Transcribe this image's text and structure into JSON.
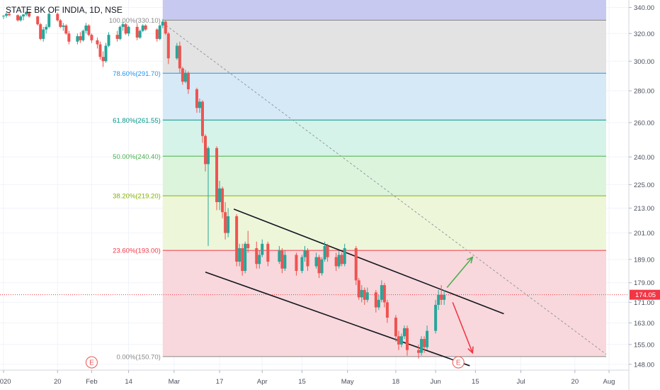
{
  "chart_data": {
    "type": "candlestick",
    "title": "STATE BK OF INDIA, 1D, NSE",
    "y_scale": "log",
    "y_range": [
      146,
      346
    ],
    "y_ticks": [
      "340.00",
      "320.00",
      "300.00",
      "280.00",
      "260.00",
      "240.00",
      "225.00",
      "213.00",
      "201.00",
      "189.00",
      "179.00",
      "171.00",
      "163.00",
      "155.00",
      "148.00"
    ],
    "x_ticks": [
      {
        "label": "2020",
        "date": "2020-01-01"
      },
      {
        "label": "20",
        "date": "2020-01-20"
      },
      {
        "label": "Feb",
        "date": "2020-02-01"
      },
      {
        "label": "14",
        "date": "2020-02-14"
      },
      {
        "label": "Mar",
        "date": "2020-03-01"
      },
      {
        "label": "17",
        "date": "2020-03-17"
      },
      {
        "label": "Apr",
        "date": "2020-04-01"
      },
      {
        "label": "15",
        "date": "2020-04-15"
      },
      {
        "label": "May",
        "date": "2020-05-01"
      },
      {
        "label": "18",
        "date": "2020-05-18"
      },
      {
        "label": "Jun",
        "date": "2020-06-01"
      },
      {
        "label": "15",
        "date": "2020-06-15"
      },
      {
        "label": "Jul",
        "date": "2020-07-01"
      },
      {
        "label": "20",
        "date": "2020-07-20"
      },
      {
        "label": "Aug",
        "date": "2020-08-01"
      }
    ],
    "last_price": "174.05",
    "last_price_value": 174.05,
    "fib_range": {
      "start_date": "2020-02-26",
      "end_date": "2020-07-31"
    },
    "fib_levels": [
      {
        "label": "100.00%(330.10)",
        "price": 330.1,
        "color": "#888888",
        "fill": "#c7c9f0"
      },
      {
        "label": "78.60%(291.70)",
        "price": 291.7,
        "color": "#2196f3",
        "fill": "#e3e3e3"
      },
      {
        "label": "61.80%(261.55)",
        "price": 261.55,
        "color": "#009688",
        "fill": "#d6e9f7"
      },
      {
        "label": "50.00%(240.40)",
        "price": 240.4,
        "color": "#4caf50",
        "fill": "#d5f3e9"
      },
      {
        "label": "38.20%(219.20)",
        "price": 219.2,
        "color": "#81b300",
        "fill": "#dcf4dc"
      },
      {
        "label": "23.60%(193.00)",
        "price": 193.0,
        "color": "#f23645",
        "fill": "#edf6d9"
      },
      {
        "label": "0.00%(150.70)",
        "price": 150.7,
        "color": "#888888",
        "fill": "#f8d8dc"
      }
    ],
    "upper_fill_price": 346,
    "channel": [
      {
        "from": [
          "2020-03-22",
          212.5
        ],
        "to": [
          "2020-06-25",
          166.5
        ]
      },
      {
        "from": [
          "2020-03-12",
          183.5
        ],
        "to": [
          "2020-06-13",
          147.5
        ]
      }
    ],
    "diagonal": {
      "from": [
        "2020-02-26",
        328
      ],
      "to": [
        "2020-07-31",
        151.5
      ]
    },
    "arrows": [
      {
        "color": "#4caf50",
        "from": [
          "2020-06-05",
          177
        ],
        "to": [
          "2020-06-14",
          190
        ]
      },
      {
        "color": "#f23645",
        "from": [
          "2020-06-07",
          171
        ],
        "to": [
          "2020-06-14",
          152
        ]
      }
    ],
    "earnings_markers": [
      {
        "label": "E",
        "date": "2020-02-01"
      },
      {
        "label": "E",
        "date": "2020-06-09"
      }
    ],
    "candles": [
      [
        "2020-01-01",
        333,
        334,
        331,
        333.5
      ],
      [
        "2020-01-02",
        333.5,
        336,
        332,
        335
      ],
      [
        "2020-01-03",
        335,
        336,
        333,
        334
      ],
      [
        "2020-01-06",
        334,
        334.5,
        329,
        330
      ],
      [
        "2020-01-07",
        330,
        334,
        329,
        333
      ],
      [
        "2020-01-08",
        333,
        335,
        330,
        334.5
      ],
      [
        "2020-01-09",
        334.5,
        337,
        333,
        336.5
      ],
      [
        "2020-01-10",
        336.5,
        337,
        332,
        333
      ],
      [
        "2020-01-13",
        333,
        333.5,
        326,
        327
      ],
      [
        "2020-01-14",
        327,
        328,
        315,
        316
      ],
      [
        "2020-01-15",
        316,
        325,
        314,
        323
      ],
      [
        "2020-01-16",
        323,
        327,
        320,
        325
      ],
      [
        "2020-01-17",
        325,
        336,
        324,
        335
      ],
      [
        "2020-01-20",
        335,
        336,
        329,
        330
      ],
      [
        "2020-01-21",
        330,
        331,
        324,
        325
      ],
      [
        "2020-01-22",
        325,
        328,
        322,
        326
      ],
      [
        "2020-01-23",
        326,
        327,
        319,
        320
      ],
      [
        "2020-01-24",
        320,
        322,
        312,
        314
      ],
      [
        "2020-01-27",
        314,
        320,
        312,
        318
      ],
      [
        "2020-01-28",
        318,
        321,
        313,
        315
      ],
      [
        "2020-01-29",
        315,
        323,
        314,
        322
      ],
      [
        "2020-01-30",
        322,
        328,
        320,
        326
      ],
      [
        "2020-01-31",
        326,
        327,
        318,
        319
      ],
      [
        "2020-02-01",
        319,
        320,
        313,
        315
      ],
      [
        "2020-02-03",
        315,
        317,
        309,
        312
      ],
      [
        "2020-02-04",
        312,
        314,
        301,
        303
      ],
      [
        "2020-02-05",
        303,
        307,
        296,
        300
      ],
      [
        "2020-02-06",
        300,
        313,
        299,
        311
      ],
      [
        "2020-02-07",
        311,
        321,
        310,
        319
      ],
      [
        "2020-02-10",
        319,
        322,
        314,
        316
      ],
      [
        "2020-02-11",
        316,
        326,
        315,
        325
      ],
      [
        "2020-02-12",
        325,
        329,
        322,
        327
      ],
      [
        "2020-02-13",
        327,
        328,
        319,
        320
      ],
      [
        "2020-02-14",
        320,
        326,
        318,
        325
      ],
      [
        "2020-02-17",
        325,
        327,
        315,
        317
      ],
      [
        "2020-02-18",
        317,
        323,
        316,
        322
      ],
      [
        "2020-02-19",
        322,
        327,
        321,
        326
      ],
      [
        "2020-02-20",
        326,
        327,
        322,
        323
      ],
      [
        "2020-02-24",
        323,
        324,
        314,
        316
      ],
      [
        "2020-02-25",
        316,
        327,
        315,
        326
      ],
      [
        "2020-02-26",
        326,
        331,
        324,
        329
      ],
      [
        "2020-02-27",
        329,
        330,
        319,
        320
      ],
      [
        "2020-02-28",
        320,
        321,
        298,
        302
      ],
      [
        "2020-03-02",
        302,
        313,
        301,
        311
      ],
      [
        "2020-03-03",
        311,
        314,
        292,
        295
      ],
      [
        "2020-03-04",
        295,
        296,
        284,
        286
      ],
      [
        "2020-03-05",
        286,
        294,
        285,
        292
      ],
      [
        "2020-03-06",
        292,
        293,
        278,
        281
      ],
      [
        "2020-03-09",
        281,
        282,
        266,
        269
      ],
      [
        "2020-03-10",
        269,
        275,
        266,
        273
      ],
      [
        "2020-03-11",
        273,
        274,
        248,
        252
      ],
      [
        "2020-03-12",
        252,
        253,
        232,
        236
      ],
      [
        "2020-03-13",
        236,
        246,
        195,
        245
      ],
      [
        "2020-03-16",
        245,
        246,
        212,
        216
      ],
      [
        "2020-03-17",
        216,
        227,
        212,
        223
      ],
      [
        "2020-03-18",
        223,
        224,
        208,
        211
      ],
      [
        "2020-03-19",
        211,
        216,
        198,
        201
      ],
      [
        "2020-03-20",
        201,
        213,
        199,
        209
      ],
      [
        "2020-03-23",
        209,
        210,
        186,
        188
      ],
      [
        "2020-03-24",
        188,
        196,
        186,
        194
      ],
      [
        "2020-03-25",
        194,
        196,
        182,
        184
      ],
      [
        "2020-03-26",
        184,
        197,
        183,
        196
      ],
      [
        "2020-03-27",
        196,
        202,
        192,
        194
      ],
      [
        "2020-03-30",
        194,
        197,
        185,
        187
      ],
      [
        "2020-03-31",
        187,
        193,
        185,
        191
      ],
      [
        "2020-04-01",
        191,
        198,
        190,
        196
      ],
      [
        "2020-04-03",
        196,
        197,
        186,
        188
      ],
      [
        "2020-04-07",
        188,
        195,
        187,
        193
      ],
      [
        "2020-04-08",
        193,
        194,
        183,
        185
      ],
      [
        "2020-04-09",
        185,
        193,
        184,
        191
      ],
      [
        "2020-04-13",
        191,
        192,
        182,
        184
      ],
      [
        "2020-04-15",
        184,
        191,
        183,
        190
      ],
      [
        "2020-04-16",
        190,
        195,
        188,
        193
      ],
      [
        "2020-04-17",
        193,
        194,
        184,
        186
      ],
      [
        "2020-04-20",
        186,
        192,
        185,
        190
      ],
      [
        "2020-04-21",
        190,
        191,
        181,
        183
      ],
      [
        "2020-04-22",
        183,
        190,
        182,
        189
      ],
      [
        "2020-04-23",
        189,
        197,
        188,
        195
      ],
      [
        "2020-04-24",
        195,
        196,
        188,
        190
      ],
      [
        "2020-04-27",
        190,
        192,
        184,
        186
      ],
      [
        "2020-04-28",
        186,
        193,
        185,
        191
      ],
      [
        "2020-04-29",
        191,
        192,
        186,
        187
      ],
      [
        "2020-04-30",
        187,
        196,
        186,
        194
      ],
      [
        "2020-05-04",
        194,
        195,
        178,
        180
      ],
      [
        "2020-05-05",
        180,
        181,
        172,
        173
      ],
      [
        "2020-05-06",
        173,
        178,
        171,
        176
      ],
      [
        "2020-05-07",
        176,
        177,
        170,
        172
      ],
      [
        "2020-05-08",
        172,
        177,
        171,
        175
      ],
      [
        "2020-05-11",
        175,
        176,
        167,
        169
      ],
      [
        "2020-05-12",
        169,
        174,
        168,
        172
      ],
      [
        "2020-05-13",
        172,
        180,
        171,
        178
      ],
      [
        "2020-05-14",
        178,
        179,
        169,
        171
      ],
      [
        "2020-05-15",
        171,
        172,
        163,
        165
      ],
      [
        "2020-05-18",
        165,
        166,
        156,
        158
      ],
      [
        "2020-05-19",
        158,
        160,
        153,
        155
      ],
      [
        "2020-05-20",
        155,
        159,
        154,
        158
      ],
      [
        "2020-05-21",
        158,
        162,
        157,
        161
      ],
      [
        "2020-05-22",
        161,
        162,
        151,
        153
      ],
      [
        "2020-05-26",
        153,
        155,
        150,
        152
      ],
      [
        "2020-05-27",
        152,
        158,
        151,
        157
      ],
      [
        "2020-05-28",
        157,
        158,
        152,
        154
      ],
      [
        "2020-05-29",
        154,
        162,
        153,
        160
      ],
      [
        "2020-06-01",
        160,
        172,
        159,
        170
      ],
      [
        "2020-06-02",
        170,
        176,
        168,
        174
      ],
      [
        "2020-06-03",
        174,
        178,
        170,
        172
      ],
      [
        "2020-06-04",
        172,
        176,
        170,
        174.05
      ]
    ]
  }
}
